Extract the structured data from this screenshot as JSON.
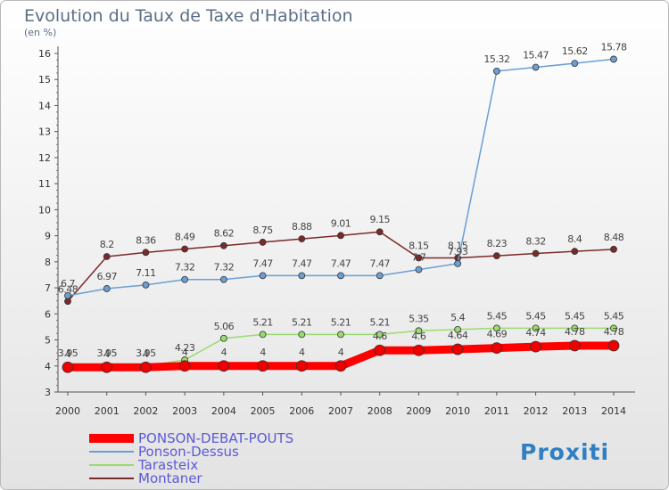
{
  "chart_data": {
    "type": "line",
    "title": "Evolution du Taux de Taxe d'Habitation",
    "subtitle": "(en %)",
    "x": [
      "2000",
      "2001",
      "2002",
      "2003",
      "2004",
      "2005",
      "2006",
      "2007",
      "2008",
      "2009",
      "2010",
      "2011",
      "2012",
      "2013",
      "2014"
    ],
    "ylim": [
      3,
      16
    ],
    "yticks": [
      3,
      4,
      5,
      6,
      7,
      8,
      9,
      10,
      11,
      12,
      13,
      14,
      15,
      16
    ],
    "grid": false,
    "legend_position": "bottom-left",
    "series": [
      {
        "name": "PONSON-DEBAT-POUTS",
        "color": "#ff0000",
        "values": [
          3.95,
          3.95,
          3.95,
          4,
          4,
          4,
          4,
          4,
          4.6,
          4.6,
          4.64,
          4.69,
          4.74,
          4.78,
          4.78
        ],
        "labels": [
          "3.95",
          "3.95",
          "3.95",
          "4",
          "4",
          "4",
          "4",
          "4",
          "4.6",
          "4.6",
          "4.64",
          "4.69",
          "4.74",
          "4.78",
          "4.78"
        ]
      },
      {
        "name": "Ponson-Dessus",
        "color": "#6a9fd4",
        "values": [
          6.7,
          6.97,
          7.11,
          7.32,
          7.32,
          7.47,
          7.47,
          7.47,
          7.47,
          7.7,
          7.93,
          15.32,
          15.47,
          15.62,
          15.78
        ],
        "labels": [
          "6.7",
          "6.97",
          "7.11",
          "7.32",
          "7.32",
          "7.47",
          "7.47",
          "7.47",
          "7.47",
          "7.7",
          "7.93",
          "15.32",
          "15.47",
          "15.62",
          "15.78"
        ]
      },
      {
        "name": "Tarasteix",
        "color": "#9adb6e",
        "values": [
          4,
          4,
          4,
          4.23,
          5.06,
          5.21,
          5.21,
          5.21,
          5.21,
          5.35,
          5.4,
          5.45,
          5.45,
          5.45,
          5.45
        ],
        "labels": [
          "4",
          "4",
          "4",
          "4.23",
          "5.06",
          "5.21",
          "5.21",
          "5.21",
          "5.21",
          "5.35",
          "5.4",
          "5.45",
          "5.45",
          "5.45",
          "5.45"
        ]
      },
      {
        "name": "Montaner",
        "color": "#7a2a2a",
        "values": [
          6.48,
          8.2,
          8.36,
          8.49,
          8.62,
          8.75,
          8.88,
          9.01,
          9.15,
          8.15,
          8.15,
          8.23,
          8.32,
          8.4,
          8.48
        ],
        "labels": [
          "6.48",
          "8.2",
          "8.36",
          "8.49",
          "8.62",
          "8.75",
          "8.88",
          "9.01",
          "9.15",
          "8.15",
          "8.15",
          "8.23",
          "8.32",
          "8.4",
          "8.48"
        ]
      }
    ]
  },
  "brand": {
    "text": "Proxiti"
  }
}
